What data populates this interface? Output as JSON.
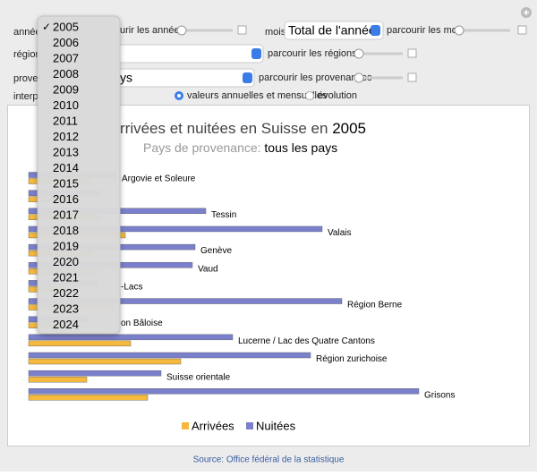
{
  "controls": {
    "year_label": "année",
    "browse_years": "urir les années",
    "month_label": "mois",
    "month_value": "Total de l'année",
    "browse_months": "parcourir les mois",
    "region_label": "région",
    "browse_regions": "parcourir les régions",
    "origin_label": "proven",
    "origin_value": "ys",
    "browse_origins": "parcourir les provenances",
    "interp_label": "interpo",
    "option_annual": "valeurs annuelles et mensuelles",
    "option_evolution": "évolution"
  },
  "year_menu": {
    "checkmark": "✓",
    "items": [
      "2005",
      "2006",
      "2007",
      "2008",
      "2009",
      "2010",
      "2011",
      "2012",
      "2013",
      "2014",
      "2015",
      "2016",
      "2017",
      "2018",
      "2019",
      "2020",
      "2021",
      "2022",
      "2023",
      "2024"
    ]
  },
  "chart_data": {
    "type": "bar",
    "orientation": "horizontal",
    "title": "rrivées et nuitées en Suisse en ",
    "title_year": "2005",
    "subtitle": "Pays de provenance:",
    "subtitle_value": "tous les pays",
    "categories": [
      "Argovie et Soleure",
      null,
      "Tessin",
      "Valais",
      "Genève",
      "Vaud",
      "-Lacs",
      "Région Berne",
      "on Bâloise",
      "Lucerne / Lac des Quatre Cantons",
      "Région zurichoise",
      "Suisse orientale",
      "Grisons"
    ],
    "series": [
      {
        "name": "Nuitées",
        "color": "#7b80cc",
        "values": [
          98,
          80,
          198,
          328,
          186,
          183,
          78,
          350,
          68,
          228,
          315,
          148,
          436
        ]
      },
      {
        "name": "Arrivées",
        "color": "#f5b93e",
        "values": [
          68,
          50,
          80,
          108,
          72,
          78,
          45,
          95,
          50,
          114,
          170,
          65,
          133
        ]
      }
    ]
  },
  "source": "Source: Office fédéral de la statistique"
}
